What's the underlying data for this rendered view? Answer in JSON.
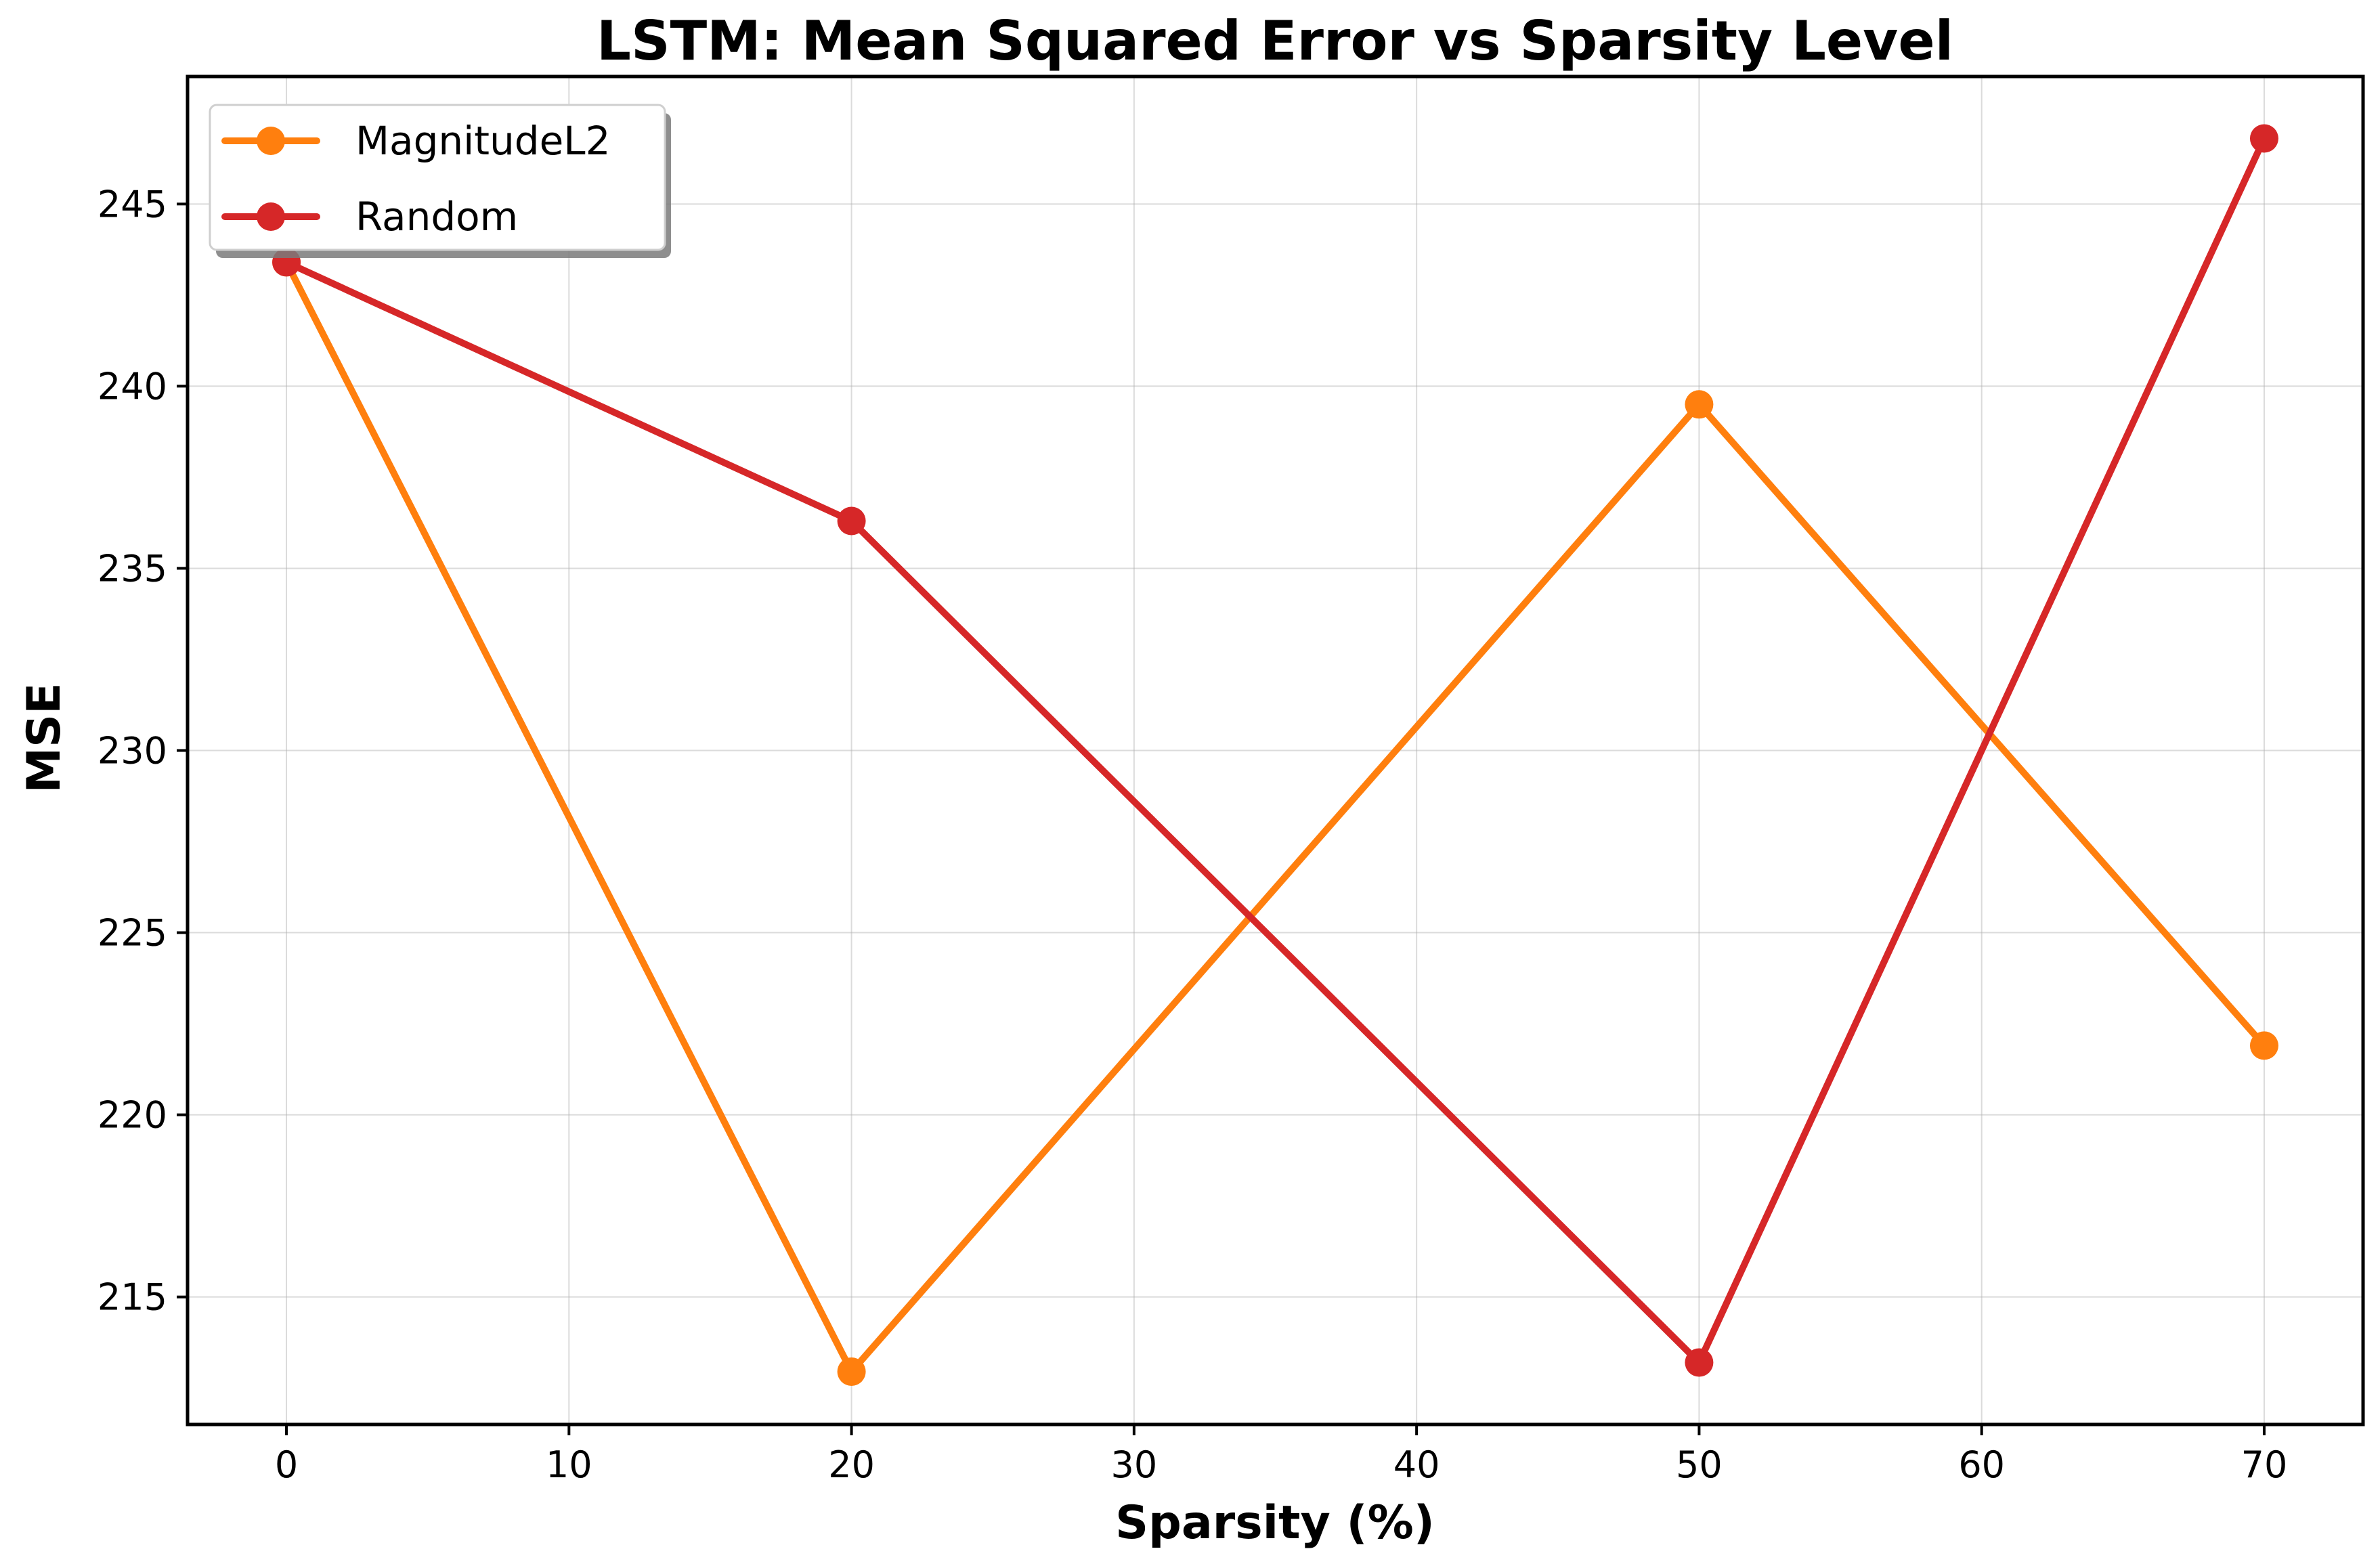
{
  "chart_data": {
    "type": "line",
    "title": "LSTM: Mean Squared Error vs Sparsity Level",
    "xlabel": "Sparsity (%)",
    "ylabel": "MSE",
    "xlim": [
      -3.5,
      73.5
    ],
    "ylim": [
      211.5,
      248.5
    ],
    "xticks": [
      0,
      10,
      20,
      30,
      40,
      50,
      60,
      70
    ],
    "yticks": [
      215,
      220,
      225,
      230,
      235,
      240,
      245
    ],
    "grid": true,
    "legend_position": "upper-left",
    "series": [
      {
        "name": "MagnitudeL2",
        "color": "#ff7f0e",
        "x": [
          0,
          20,
          50,
          70
        ],
        "y": [
          243.4,
          212.95,
          239.5,
          221.9
        ]
      },
      {
        "name": "Random",
        "color": "#d62728",
        "x": [
          0,
          20,
          50,
          70
        ],
        "y": [
          243.4,
          236.3,
          213.2,
          246.8
        ]
      }
    ]
  }
}
